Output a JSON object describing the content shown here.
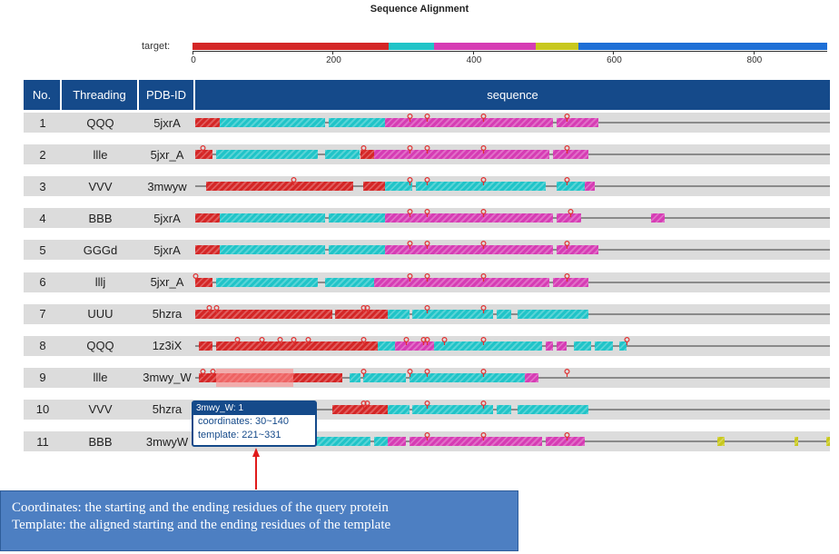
{
  "title": "Sequence Alignment",
  "target": {
    "label": "target:",
    "length": 905,
    "ticks": [
      0,
      200,
      400,
      600,
      800
    ],
    "segments": [
      {
        "start": 0,
        "end": 280,
        "color": "#d42626"
      },
      {
        "start": 280,
        "end": 345,
        "color": "#20c4c8"
      },
      {
        "start": 345,
        "end": 490,
        "color": "#d63cb4"
      },
      {
        "start": 490,
        "end": 550,
        "color": "#c8c81e"
      },
      {
        "start": 550,
        "end": 905,
        "color": "#1e6fd6"
      }
    ]
  },
  "headers": {
    "no": "No.",
    "threading": "Threading",
    "pdb": "PDB-ID",
    "sequence": "sequence"
  },
  "colors": {
    "header_bg": "#154a8a",
    "row_even": "#f2f2f2",
    "row_odd": "#dcdcdc",
    "red": "#d42626",
    "cyan": "#20c4c8",
    "magenta": "#d63cb4",
    "yellow": "#c8c81e"
  },
  "rows": [
    {
      "no": "1",
      "threading": "QQQ",
      "pdb": "5jxrA",
      "segments": [
        [
          0,
          35,
          "red"
        ],
        [
          35,
          185,
          "cyan"
        ],
        [
          190,
          270,
          "cyan"
        ],
        [
          270,
          510,
          "magenta"
        ],
        [
          515,
          575,
          "magenta"
        ]
      ],
      "pins": [
        305,
        330,
        410,
        530
      ]
    },
    {
      "no": "2",
      "threading": "llle",
      "pdb": "5jxr_A",
      "segments": [
        [
          0,
          25,
          "red"
        ],
        [
          30,
          175,
          "cyan"
        ],
        [
          185,
          235,
          "cyan"
        ],
        [
          235,
          255,
          "red"
        ],
        [
          255,
          505,
          "magenta"
        ],
        [
          510,
          560,
          "magenta"
        ]
      ],
      "pins": [
        10,
        240,
        305,
        330,
        410,
        530
      ]
    },
    {
      "no": "3",
      "threading": "VVV",
      "pdb": "3mwyw",
      "segments": [
        [
          15,
          225,
          "red"
        ],
        [
          240,
          270,
          "red"
        ],
        [
          270,
          310,
          "cyan"
        ],
        [
          315,
          500,
          "cyan"
        ],
        [
          515,
          555,
          "cyan"
        ],
        [
          555,
          570,
          "magenta"
        ]
      ],
      "pins": [
        140,
        305,
        330,
        410,
        530
      ]
    },
    {
      "no": "4",
      "threading": "BBB",
      "pdb": "5jxrA",
      "segments": [
        [
          0,
          35,
          "red"
        ],
        [
          35,
          185,
          "cyan"
        ],
        [
          190,
          270,
          "cyan"
        ],
        [
          270,
          510,
          "magenta"
        ],
        [
          515,
          550,
          "magenta"
        ],
        [
          650,
          670,
          "magenta"
        ]
      ],
      "pins": [
        305,
        330,
        410,
        535
      ]
    },
    {
      "no": "5",
      "threading": "GGGd",
      "pdb": "5jxrA",
      "segments": [
        [
          0,
          35,
          "red"
        ],
        [
          35,
          185,
          "cyan"
        ],
        [
          190,
          270,
          "cyan"
        ],
        [
          270,
          510,
          "magenta"
        ],
        [
          515,
          575,
          "magenta"
        ]
      ],
      "pins": [
        305,
        330,
        410,
        530
      ]
    },
    {
      "no": "6",
      "threading": "lllj",
      "pdb": "5jxr_A",
      "segments": [
        [
          0,
          25,
          "red"
        ],
        [
          30,
          175,
          "cyan"
        ],
        [
          185,
          255,
          "cyan"
        ],
        [
          255,
          505,
          "magenta"
        ],
        [
          510,
          560,
          "magenta"
        ]
      ],
      "pins": [
        0,
        305,
        330,
        410,
        530
      ]
    },
    {
      "no": "7",
      "threading": "UUU",
      "pdb": "5hzra",
      "segments": [
        [
          0,
          195,
          "red"
        ],
        [
          200,
          275,
          "red"
        ],
        [
          275,
          305,
          "cyan"
        ],
        [
          310,
          425,
          "cyan"
        ],
        [
          430,
          450,
          "cyan"
        ],
        [
          460,
          560,
          "cyan"
        ]
      ],
      "pins": [
        20,
        30,
        240,
        245,
        330,
        410
      ]
    },
    {
      "no": "8",
      "threading": "QQQ",
      "pdb": "1z3iX",
      "segments": [
        [
          5,
          25,
          "red"
        ],
        [
          30,
          260,
          "red"
        ],
        [
          260,
          285,
          "cyan"
        ],
        [
          285,
          340,
          "magenta"
        ],
        [
          340,
          495,
          "cyan"
        ],
        [
          500,
          510,
          "magenta"
        ],
        [
          515,
          530,
          "magenta"
        ],
        [
          540,
          565,
          "cyan"
        ],
        [
          570,
          595,
          "cyan"
        ],
        [
          605,
          615,
          "cyan"
        ]
      ],
      "pins": [
        60,
        95,
        120,
        140,
        160,
        240,
        300,
        325,
        330,
        355,
        410,
        615
      ]
    },
    {
      "no": "9",
      "threading": "llle",
      "pdb": "3mwy_W",
      "segments": [
        [
          5,
          140,
          "red"
        ],
        [
          140,
          210,
          "red"
        ],
        [
          220,
          235,
          "cyan"
        ],
        [
          240,
          300,
          "cyan"
        ],
        [
          305,
          470,
          "cyan"
        ],
        [
          470,
          490,
          "magenta"
        ]
      ],
      "pins": [
        10,
        25,
        240,
        305,
        330,
        410,
        530
      ]
    },
    {
      "no": "10",
      "threading": "VVV",
      "pdb": "5hzra",
      "segments": [
        [
          195,
          275,
          "red"
        ],
        [
          275,
          305,
          "cyan"
        ],
        [
          310,
          425,
          "cyan"
        ],
        [
          430,
          450,
          "cyan"
        ],
        [
          460,
          560,
          "cyan"
        ]
      ],
      "pins": [
        240,
        245,
        330,
        410
      ]
    },
    {
      "no": "11",
      "threading": "BBB",
      "pdb": "3mwyW",
      "segments": [
        [
          0,
          20,
          "red"
        ],
        [
          140,
          250,
          "cyan"
        ],
        [
          255,
          275,
          "cyan"
        ],
        [
          275,
          300,
          "magenta"
        ],
        [
          305,
          495,
          "magenta"
        ],
        [
          500,
          555,
          "magenta"
        ],
        [
          745,
          755,
          "yellow"
        ],
        [
          855,
          860,
          "yellow"
        ],
        [
          900,
          905,
          "yellow"
        ]
      ],
      "pins": [
        330,
        410,
        530
      ]
    }
  ],
  "tooltip": {
    "head": "3mwy_W: 1",
    "coordinates": "coordinates: 30~140",
    "template": "template: 221~331"
  },
  "note": {
    "line1": "Coordinates: the starting and the ending residues of the query  protein",
    "line2": "Template: the aligned starting and the ending residues of the template"
  }
}
